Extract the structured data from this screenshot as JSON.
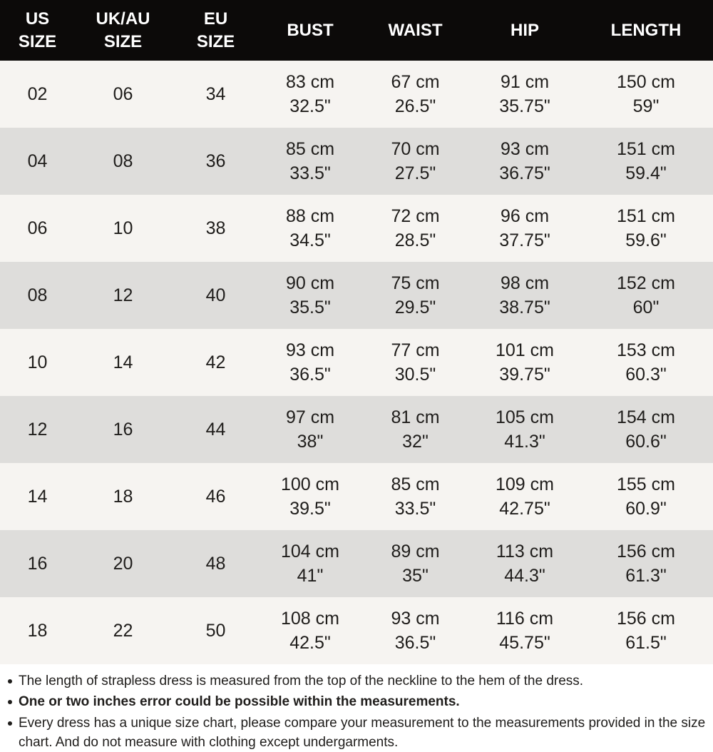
{
  "table": {
    "headers": [
      [
        "US",
        "SIZE"
      ],
      [
        "UK/AU",
        "SIZE"
      ],
      [
        "EU",
        "SIZE"
      ],
      [
        "BUST"
      ],
      [
        "WAIST"
      ],
      [
        "HIP"
      ],
      [
        "LENGTH"
      ]
    ],
    "rows": [
      [
        [
          "02"
        ],
        [
          "06"
        ],
        [
          "34"
        ],
        [
          "83 cm",
          "32.5\""
        ],
        [
          "67 cm",
          "26.5\""
        ],
        [
          "91 cm",
          "35.75\""
        ],
        [
          "150 cm",
          "59\""
        ]
      ],
      [
        [
          "04"
        ],
        [
          "08"
        ],
        [
          "36"
        ],
        [
          "85 cm",
          "33.5\""
        ],
        [
          "70 cm",
          "27.5\""
        ],
        [
          "93 cm",
          "36.75\""
        ],
        [
          "151 cm",
          "59.4\""
        ]
      ],
      [
        [
          "06"
        ],
        [
          "10"
        ],
        [
          "38"
        ],
        [
          "88 cm",
          "34.5\""
        ],
        [
          "72 cm",
          "28.5\""
        ],
        [
          "96 cm",
          "37.75\""
        ],
        [
          "151 cm",
          "59.6\""
        ]
      ],
      [
        [
          "08"
        ],
        [
          "12"
        ],
        [
          "40"
        ],
        [
          "90 cm",
          "35.5\""
        ],
        [
          "75 cm",
          "29.5\""
        ],
        [
          "98 cm",
          "38.75\""
        ],
        [
          "152 cm",
          "60\""
        ]
      ],
      [
        [
          "10"
        ],
        [
          "14"
        ],
        [
          "42"
        ],
        [
          "93 cm",
          "36.5\""
        ],
        [
          "77 cm",
          "30.5\""
        ],
        [
          "101 cm",
          "39.75\""
        ],
        [
          "153 cm",
          "60.3\""
        ]
      ],
      [
        [
          "12"
        ],
        [
          "16"
        ],
        [
          "44"
        ],
        [
          "97 cm",
          "38\""
        ],
        [
          "81 cm",
          "32\""
        ],
        [
          "105 cm",
          "41.3\""
        ],
        [
          "154 cm",
          "60.6\""
        ]
      ],
      [
        [
          "14"
        ],
        [
          "18"
        ],
        [
          "46"
        ],
        [
          "100 cm",
          "39.5\""
        ],
        [
          "85 cm",
          "33.5\""
        ],
        [
          "109 cm",
          "42.75\""
        ],
        [
          "155 cm",
          "60.9\""
        ]
      ],
      [
        [
          "16"
        ],
        [
          "20"
        ],
        [
          "48"
        ],
        [
          "104 cm",
          "41\""
        ],
        [
          "89 cm",
          "35\""
        ],
        [
          "113 cm",
          "44.3\""
        ],
        [
          "156 cm",
          "61.3\""
        ]
      ],
      [
        [
          "18"
        ],
        [
          "22"
        ],
        [
          "50"
        ],
        [
          "108 cm",
          "42.5\""
        ],
        [
          "93 cm",
          "36.5\""
        ],
        [
          "116 cm",
          "45.75\""
        ],
        [
          "156 cm",
          "61.5\""
        ]
      ]
    ]
  },
  "notes": [
    "The length of strapless dress is measured from the top of the neckline to the hem of the dress.",
    "One or two inches error could be possible within the measurements.",
    "Every dress has a unique size chart, please compare your measurement to the measurements provided in the size chart. And do not measure with clothing except undergarments."
  ],
  "colors": {
    "header_bg": "#0c0a09",
    "header_text": "#ffffff",
    "row_light": "#f6f4f1",
    "row_dark": "#dedddb",
    "notes_bg": "#ffffff",
    "text": "#1f1d1b"
  }
}
